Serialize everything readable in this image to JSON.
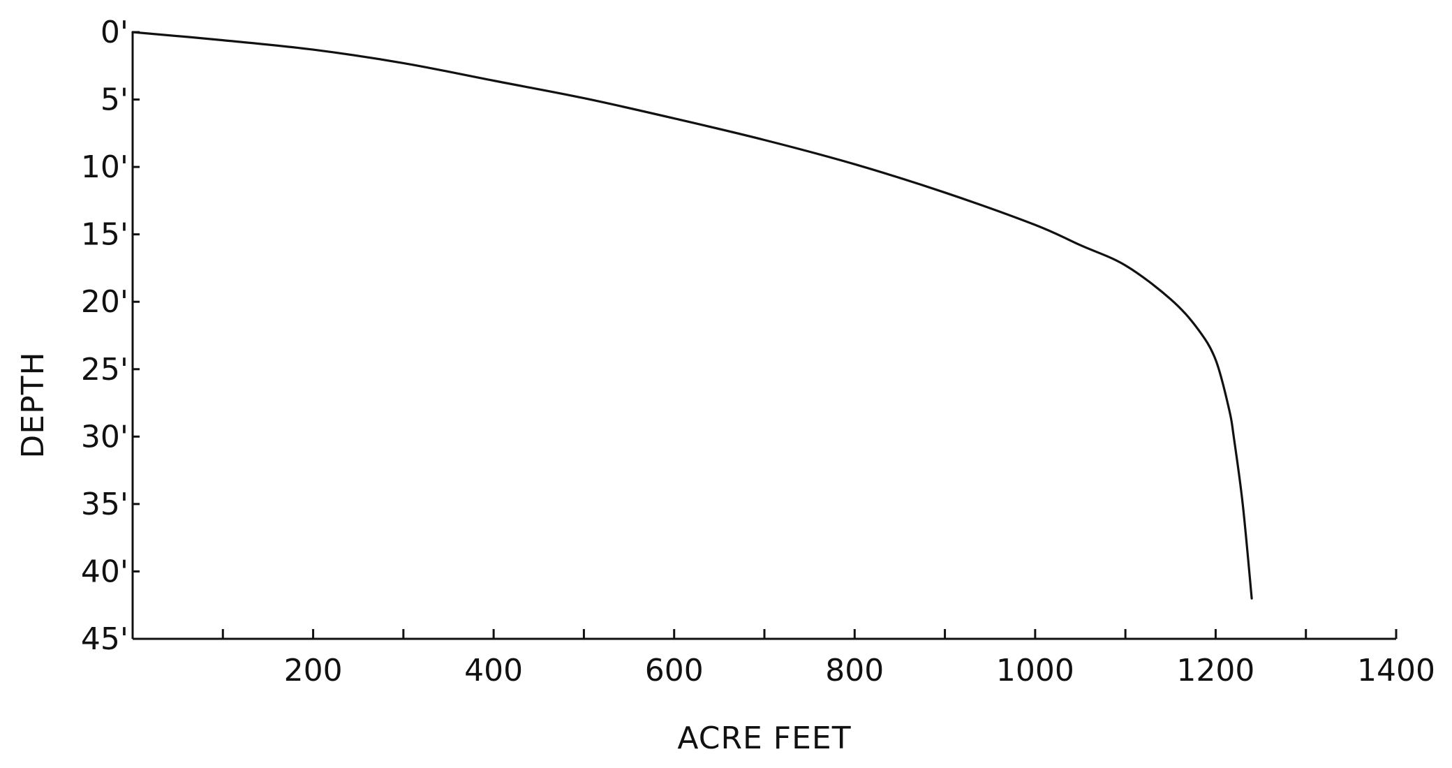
{
  "chart_data": {
    "type": "line",
    "title": "",
    "xlabel": "ACRE FEET",
    "ylabel": "DEPTH",
    "xlim": [
      0,
      1400
    ],
    "ylim": [
      0,
      45
    ],
    "y_inverted": true,
    "grid": false,
    "x_ticks": [
      100,
      200,
      300,
      400,
      500,
      600,
      700,
      800,
      900,
      1000,
      1100,
      1200,
      1300,
      1400
    ],
    "x_tick_labels": [
      {
        "value": 200,
        "label": "200"
      },
      {
        "value": 400,
        "label": "400"
      },
      {
        "value": 600,
        "label": "600"
      },
      {
        "value": 800,
        "label": "800"
      },
      {
        "value": 1000,
        "label": "1000"
      },
      {
        "value": 1200,
        "label": "1200"
      },
      {
        "value": 1400,
        "label": "1400"
      }
    ],
    "y_tick_labels": [
      {
        "value": 0,
        "label": "0'"
      },
      {
        "value": 5,
        "label": "5'"
      },
      {
        "value": 10,
        "label": "10'"
      },
      {
        "value": 15,
        "label": "15'"
      },
      {
        "value": 20,
        "label": "20'"
      },
      {
        "value": 25,
        "label": "25'"
      },
      {
        "value": 30,
        "label": "30'"
      },
      {
        "value": 35,
        "label": "35'"
      },
      {
        "value": 40,
        "label": "40'"
      },
      {
        "value": 45,
        "label": "45'"
      }
    ],
    "series": [
      {
        "color": "#111111",
        "points": [
          {
            "x": 0,
            "y": 0
          },
          {
            "x": 100,
            "y": 0.6
          },
          {
            "x": 200,
            "y": 1.3
          },
          {
            "x": 300,
            "y": 2.3
          },
          {
            "x": 400,
            "y": 3.6
          },
          {
            "x": 500,
            "y": 4.9
          },
          {
            "x": 600,
            "y": 6.4
          },
          {
            "x": 700,
            "y": 8.0
          },
          {
            "x": 800,
            "y": 9.8
          },
          {
            "x": 900,
            "y": 11.9
          },
          {
            "x": 1000,
            "y": 14.3
          },
          {
            "x": 1050,
            "y": 15.8
          },
          {
            "x": 1100,
            "y": 17.3
          },
          {
            "x": 1150,
            "y": 19.8
          },
          {
            "x": 1180,
            "y": 22.0
          },
          {
            "x": 1200,
            "y": 24.3
          },
          {
            "x": 1215,
            "y": 28.0
          },
          {
            "x": 1220,
            "y": 30.0
          },
          {
            "x": 1230,
            "y": 35.0
          },
          {
            "x": 1240,
            "y": 42.0
          }
        ]
      }
    ]
  }
}
